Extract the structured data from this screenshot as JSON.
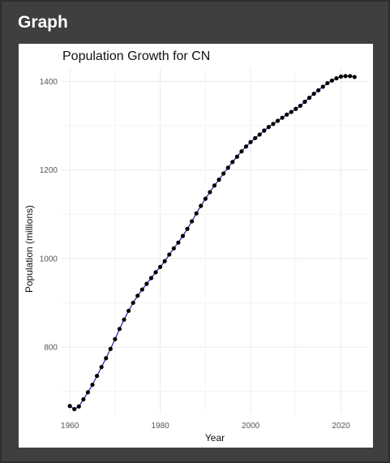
{
  "panel": {
    "title": "Graph"
  },
  "chart_data": {
    "type": "line",
    "title": "Population Growth for CN",
    "xlabel": "Year",
    "ylabel": "Population (millions)",
    "xlim": [
      1958,
      2026
    ],
    "ylim": [
      650,
      1430
    ],
    "x_ticks": [
      1960,
      1980,
      2000,
      2020
    ],
    "y_ticks": [
      800,
      1000,
      1200,
      1400
    ],
    "grid": true,
    "line_color": "#1f1fa8",
    "point_color": "#000000",
    "series": [
      {
        "x": [
          1960,
          1961,
          1962,
          1963,
          1964,
          1965,
          1966,
          1967,
          1968,
          1969,
          1970,
          1971,
          1972,
          1973,
          1974,
          1975,
          1976,
          1977,
          1978,
          1979,
          1980,
          1981,
          1982,
          1983,
          1984,
          1985,
          1986,
          1987,
          1988,
          1989,
          1990,
          1991,
          1992,
          1993,
          1994,
          1995,
          1996,
          1997,
          1998,
          1999,
          2000,
          2001,
          2002,
          2003,
          2004,
          2005,
          2006,
          2007,
          2008,
          2009,
          2010,
          2011,
          2012,
          2013,
          2014,
          2015,
          2016,
          2017,
          2018,
          2019,
          2020,
          2021,
          2022,
          2023
        ],
        "values": [
          667,
          660,
          666,
          682,
          698,
          715,
          735,
          755,
          775,
          796,
          818,
          841,
          862,
          882,
          900,
          916,
          930,
          943,
          956,
          969,
          981,
          994,
          1009,
          1023,
          1036,
          1051,
          1067,
          1084,
          1102,
          1119,
          1135,
          1150,
          1165,
          1178,
          1192,
          1205,
          1218,
          1230,
          1242,
          1253,
          1263,
          1272,
          1280,
          1289,
          1297,
          1304,
          1311,
          1318,
          1325,
          1331,
          1338,
          1345,
          1354,
          1363,
          1372,
          1380,
          1388,
          1396,
          1402,
          1407,
          1411,
          1412,
          1412,
          1410
        ]
      }
    ]
  }
}
